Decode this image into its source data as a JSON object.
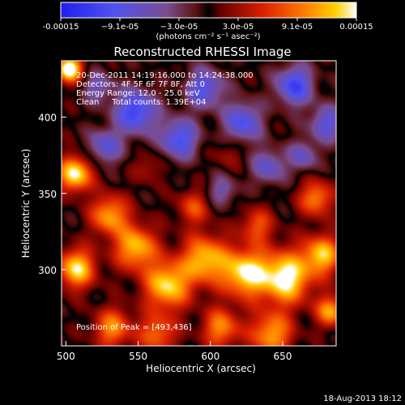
{
  "chart_data": {
    "type": "heatmap",
    "title": "Reconstructed RHESSI Image",
    "xlabel": "Heliocentric X (arcsec)",
    "ylabel": "Heliocentric Y (arcsec)",
    "xlim": [
      497,
      687
    ],
    "ylim": [
      250,
      437
    ],
    "x_ticks": [
      500,
      550,
      600,
      650
    ],
    "y_ticks": [
      300,
      350,
      400
    ],
    "colorbar": {
      "range": [
        -0.00015,
        0.00015
      ],
      "tick_labels": [
        "-0.00015",
        "−9.1e-05",
        "−3.0e-05",
        "3.0e-05",
        "9.1e-05",
        "0.00015"
      ],
      "units": "(photons cm⁻² s⁻¹ asec⁻²)"
    },
    "annotations": [
      "20-Dec-2011 14:19:16.000 to 14:24:38.000",
      "Detectors: 4F 5F 6F 7F 8F, Att 0",
      "Energy Range: 12.0 - 25.0 keV",
      "Clean     Total counts: 1.39E+04"
    ],
    "peak_label": "Position of Peak = [493,436]",
    "footer_date": "18-Aug-2013 18:12",
    "sources": [
      {
        "x": 502,
        "y": 432,
        "amp": 1.4,
        "r": 6
      },
      {
        "x": 506,
        "y": 363,
        "amp": 1.2,
        "r": 8
      },
      {
        "x": 507,
        "y": 301,
        "amp": 1.1,
        "r": 9
      },
      {
        "x": 530,
        "y": 336,
        "amp": 0.9,
        "r": 9
      },
      {
        "x": 548,
        "y": 315,
        "amp": 1.0,
        "r": 10
      },
      {
        "x": 570,
        "y": 290,
        "amp": 1.1,
        "r": 11
      },
      {
        "x": 596,
        "y": 307,
        "amp": 1.0,
        "r": 11
      },
      {
        "x": 624,
        "y": 298,
        "amp": 1.15,
        "r": 11
      },
      {
        "x": 652,
        "y": 295,
        "amp": 1.25,
        "r": 12
      },
      {
        "x": 677,
        "y": 310,
        "amp": 1.0,
        "r": 9
      },
      {
        "x": 673,
        "y": 347,
        "amp": 0.8,
        "r": 8
      },
      {
        "x": 683,
        "y": 273,
        "amp": 0.9,
        "r": 7
      },
      {
        "x": 532,
        "y": 262,
        "amp": 0.8,
        "r": 9
      },
      {
        "x": 563,
        "y": 258,
        "amp": 0.7,
        "r": 9
      },
      {
        "x": 607,
        "y": 262,
        "amp": 0.8,
        "r": 9
      },
      {
        "x": 642,
        "y": 258,
        "amp": 0.9,
        "r": 10
      },
      {
        "x": 588,
        "y": 341,
        "amp": 0.55,
        "r": 8
      },
      {
        "x": 632,
        "y": 329,
        "amp": 0.6,
        "r": 8
      },
      {
        "x": 557,
        "y": 367,
        "amp": 0.3,
        "r": 7
      },
      {
        "x": 612,
        "y": 376,
        "amp": 0.25,
        "r": 7
      },
      {
        "x": 548,
        "y": 404,
        "amp": -0.95,
        "r": 10
      },
      {
        "x": 578,
        "y": 386,
        "amp": -0.85,
        "r": 9
      },
      {
        "x": 596,
        "y": 419,
        "amp": -0.75,
        "r": 9
      },
      {
        "x": 622,
        "y": 397,
        "amp": -0.8,
        "r": 9
      },
      {
        "x": 658,
        "y": 421,
        "amp": -0.9,
        "r": 9
      },
      {
        "x": 680,
        "y": 396,
        "amp": -0.7,
        "r": 8
      },
      {
        "x": 527,
        "y": 381,
        "amp": -0.65,
        "r": 8
      },
      {
        "x": 640,
        "y": 368,
        "amp": -0.6,
        "r": 8
      },
      {
        "x": 664,
        "y": 375,
        "amp": -0.55,
        "r": 7
      },
      {
        "x": 522,
        "y": 420,
        "amp": -0.5,
        "r": 7
      },
      {
        "x": 608,
        "y": 352,
        "amp": -0.45,
        "r": 7
      }
    ]
  }
}
